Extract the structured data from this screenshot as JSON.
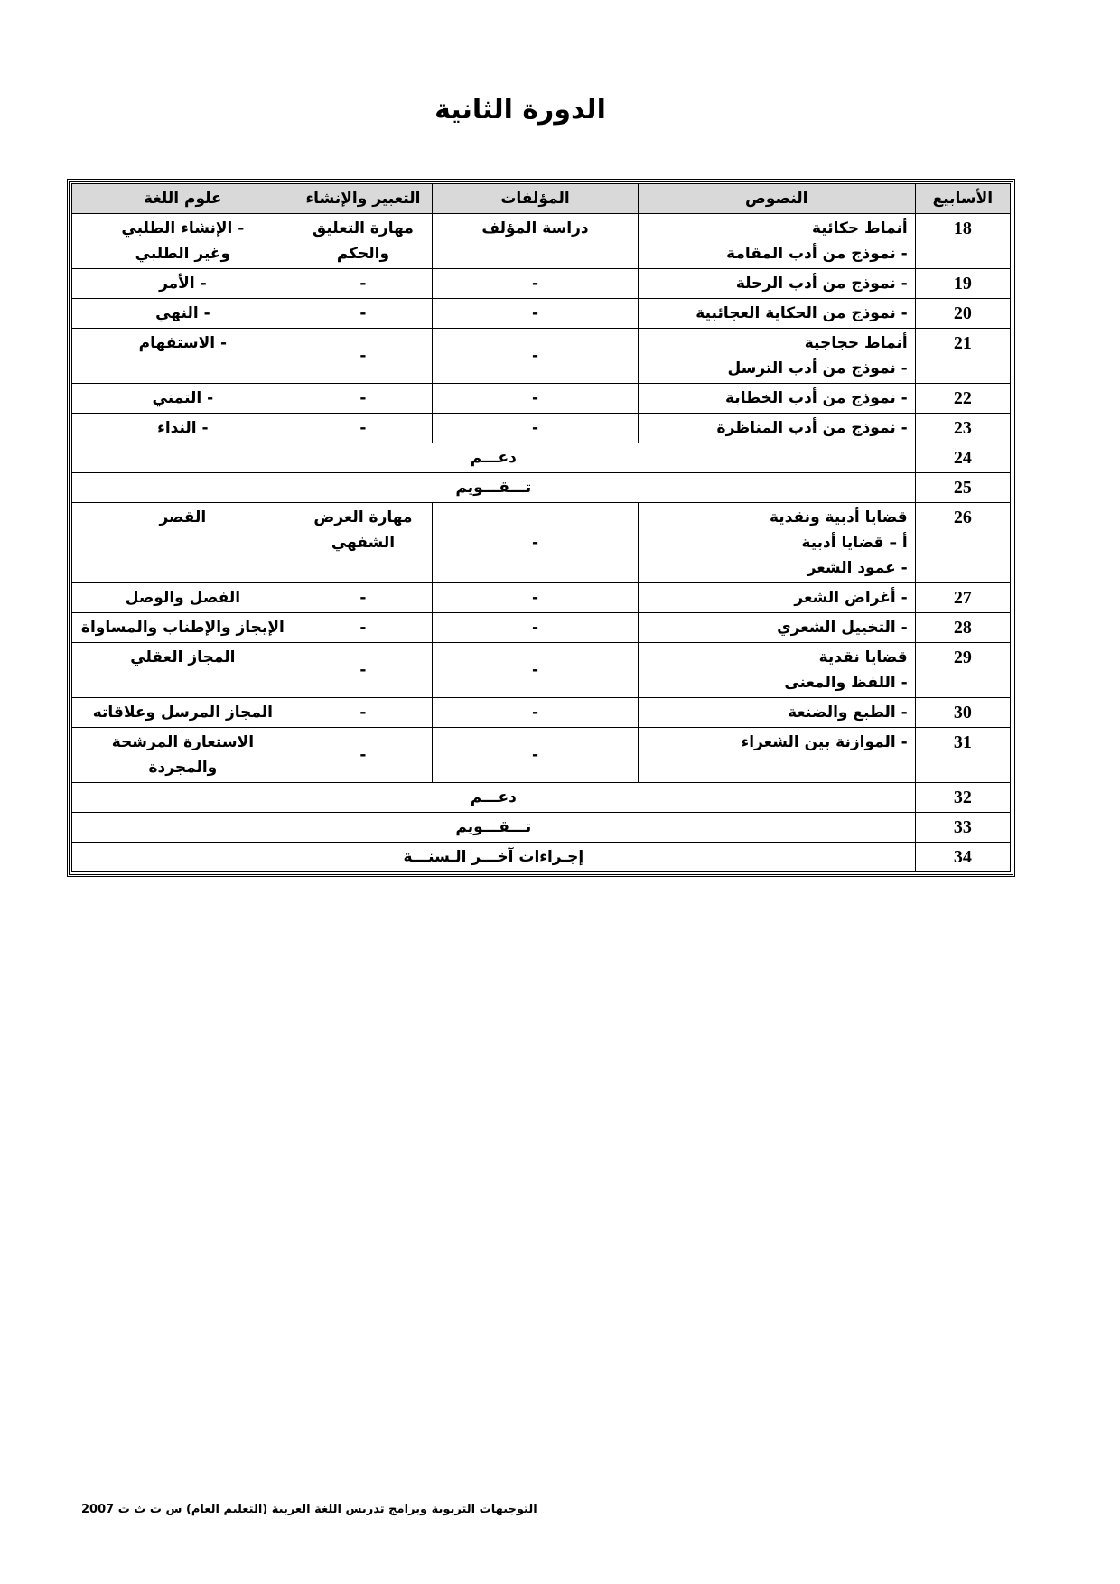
{
  "title": "الدورة الثانية",
  "table": {
    "headers": [
      "الأسابيع",
      "النصوص",
      "المؤلفات",
      "التعبير والإنشاء",
      "علوم اللغة"
    ],
    "rows": [
      {
        "week": "18",
        "texts": "أنماط حكائية\n   -  نموذج من أدب المقامة",
        "works": "دراسة المؤلف",
        "expression": "مهارة التعليق\nوالحكم",
        "language": "- الإنشاء الطلبي\nوغير الطلبي"
      },
      {
        "week": "19",
        "texts": "   -  نموذج من أدب الرحلة",
        "works": "-",
        "expression": "-",
        "language": "- الأمر"
      },
      {
        "week": "20",
        "texts": "  - نموذج من الحكاية  العجائبية",
        "works": "-",
        "expression": "-",
        "language": "- النهي"
      },
      {
        "week": "21",
        "texts": "أنماط حجاجية\n   - نموذج من أدب الترسل",
        "works": "-",
        "expression": "-",
        "language": "- الاستفهام"
      },
      {
        "week": "22",
        "texts": "   -  نموذج من أدب الخطابة",
        "works": "-",
        "expression": "-",
        "language": "- التمني"
      },
      {
        "week": "23",
        "texts": "  - نموذج من أدب المناظرة",
        "works": "-",
        "expression": "-",
        "language": "- النداء"
      },
      {
        "week": "24",
        "merged": "دعـــم"
      },
      {
        "week": "25",
        "merged": "تـــقـــويم"
      },
      {
        "week": "26",
        "texts": "       قضايا أدبية ونقدية\n          أ – قضايا أدبية\n          - عمود الشعر",
        "works": "-",
        "expression": "مهارة العرض\nالشفهي",
        "language": "القصر"
      },
      {
        "week": "27",
        "texts": "       - أغراض الشعر",
        "works": "-",
        "expression": "-",
        "language": "الفصل والوصل"
      },
      {
        "week": "28",
        "texts": "       - التخييل الشعري",
        "works": "-",
        "expression": "-",
        "language": "الإيجاز والإطناب والمساواة"
      },
      {
        "week": "29",
        "texts": "          قضايا نقدية\n          - اللفظ والمعنى",
        "works": "-",
        "expression": "-",
        "language": "المجاز العقلي"
      },
      {
        "week": "30",
        "texts": "       - الطبع والضنعة",
        "works": "-",
        "expression": "-",
        "language": "المجاز المرسل وعلاقاته"
      },
      {
        "week": "31",
        "texts": "   - الموازنة بين الشعراء",
        "works": "-",
        "expression": "-",
        "language": "الاستعارة المرشحة\nوالمجردة"
      },
      {
        "week": "32",
        "merged": "دعـــم"
      },
      {
        "week": "33",
        "merged": "تـــقـــويم"
      },
      {
        "week": "34",
        "merged": "إجـراءات آخـــر الـسنـــة"
      }
    ]
  },
  "footer": "التوجيهات التربوية وبرامج تدريس اللغة العربية (التعليم العام) س ت ث ت 2007"
}
